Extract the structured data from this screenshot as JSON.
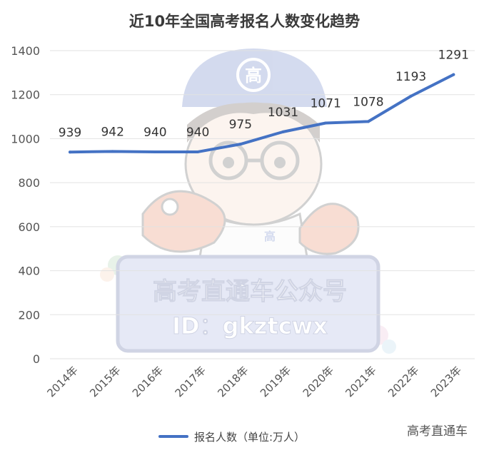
{
  "chart_data": {
    "type": "line",
    "title": "近10年全国高考报名人数变化趋势",
    "categories": [
      "2014年",
      "2015年",
      "2016年",
      "2017年",
      "2018年",
      "2019年",
      "2020年",
      "2021年",
      "2022年",
      "2023年"
    ],
    "series": [
      {
        "name": "报名人数（单位:万人）",
        "values": [
          939,
          942,
          940,
          940,
          975,
          1031,
          1071,
          1078,
          1193,
          1291
        ],
        "color": "#4472c4"
      }
    ],
    "yticks": [
      "0",
      "200",
      "400",
      "600",
      "800",
      "1000",
      "1200",
      "1400"
    ],
    "ylim": [
      0,
      1400
    ],
    "grid": true,
    "legend_position": "bottom-center",
    "data_labels": true
  },
  "watermark": {
    "line1": "高考直通车公众号",
    "line2": "ID：gkztcwx",
    "cap_char": "高",
    "shirt_char": "高"
  },
  "credit": "高考直通车"
}
